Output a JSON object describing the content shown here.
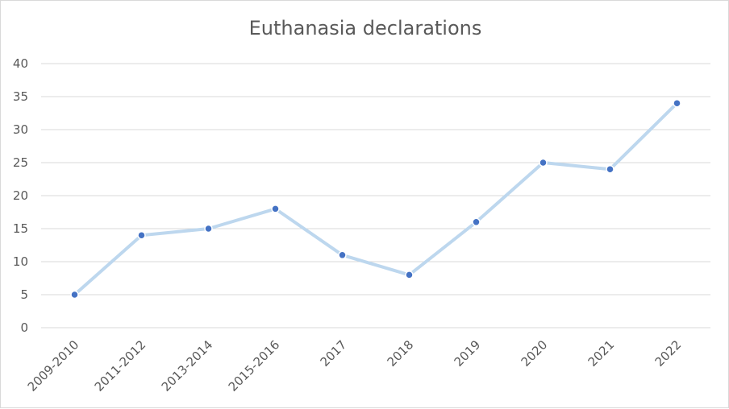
{
  "chart_data": {
    "type": "line",
    "title": "Euthanasia declarations",
    "xlabel": "",
    "ylabel": "",
    "categories": [
      "2009-2010",
      "2011-2012",
      "2013-2014",
      "2015-2016",
      "2017",
      "2018",
      "2019",
      "2020",
      "2021",
      "2022"
    ],
    "series": [
      {
        "values": [
          5,
          14,
          15,
          18,
          11,
          8,
          16,
          25,
          24,
          34
        ]
      }
    ],
    "ylim": [
      0,
      40
    ],
    "yticks": [
      0,
      5,
      10,
      15,
      20,
      25,
      30,
      35,
      40
    ],
    "grid": true,
    "legend": "none",
    "colors": {
      "line": "#bdd7ee",
      "marker": "#4472c4",
      "grid": "#d9d9d9",
      "text": "#595959"
    }
  }
}
